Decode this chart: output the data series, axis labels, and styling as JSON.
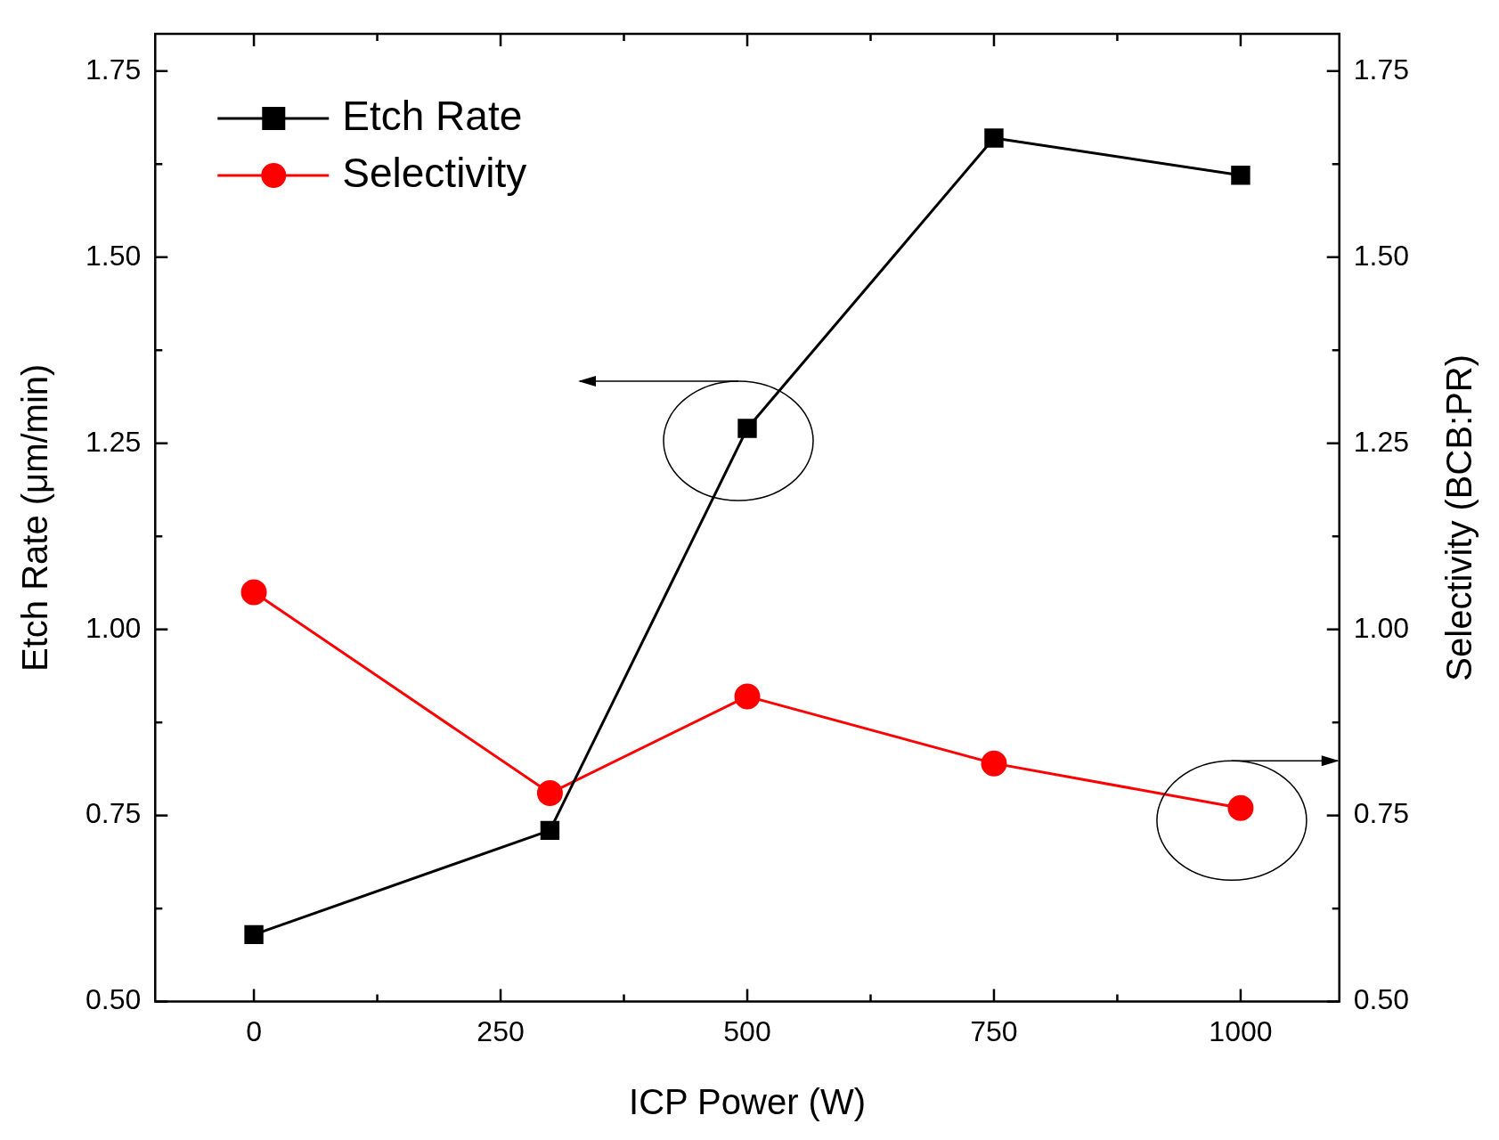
{
  "chart_data": {
    "type": "line",
    "xlabel": "ICP Power (W)",
    "ylabel": "Etch Rate (μm/min)",
    "y2label": "Selectivity (BCB:PR)",
    "x": [
      0,
      300,
      500,
      750,
      1000
    ],
    "series": [
      {
        "name": "Etch Rate",
        "color": "#000000",
        "marker": "square",
        "values": [
          0.59,
          0.73,
          1.27,
          1.66,
          1.61
        ]
      },
      {
        "name": "Selectivity",
        "color": "#ff0000",
        "marker": "circle",
        "axis": "y2",
        "values": [
          1.05,
          0.78,
          0.91,
          0.82,
          0.76
        ]
      }
    ],
    "xlim": [
      -100,
      1100
    ],
    "xticks": [
      0,
      {
        "value": 125,
        "label": null
      },
      250,
      {
        "value": 375,
        "label": null
      },
      500,
      {
        "value": 625,
        "label": null
      },
      750,
      {
        "value": 875,
        "label": null
      },
      1000
    ],
    "ylim": [
      0.5,
      1.8
    ],
    "yticks": [
      {
        "value": 0.5,
        "label": "0.50"
      },
      {
        "value": 0.625,
        "label": null
      },
      0.75,
      {
        "value": 0.875,
        "label": null
      },
      {
        "value": 1,
        "label": "1.00"
      },
      {
        "value": 1.125,
        "label": null
      },
      1.25,
      {
        "value": 1.375,
        "label": null
      },
      {
        "value": 1.5,
        "label": "1.50"
      },
      {
        "value": 1.625,
        "label": null
      },
      1.75
    ],
    "y2lim": [
      0.5,
      1.8
    ],
    "y2ticks": [
      {
        "value": 0.5,
        "label": "0.50"
      },
      {
        "value": 0.625,
        "label": null
      },
      0.75,
      {
        "value": 0.875,
        "label": null
      },
      {
        "value": 1,
        "label": "1.00"
      },
      {
        "value": 1.125,
        "label": null
      },
      1.25,
      {
        "value": 1.375,
        "label": null
      },
      {
        "value": 1.5,
        "label": "1.50"
      },
      {
        "value": 1.625,
        "label": null
      },
      1.75
    ],
    "grid": false,
    "legend": "top left",
    "line_style": "solid"
  }
}
